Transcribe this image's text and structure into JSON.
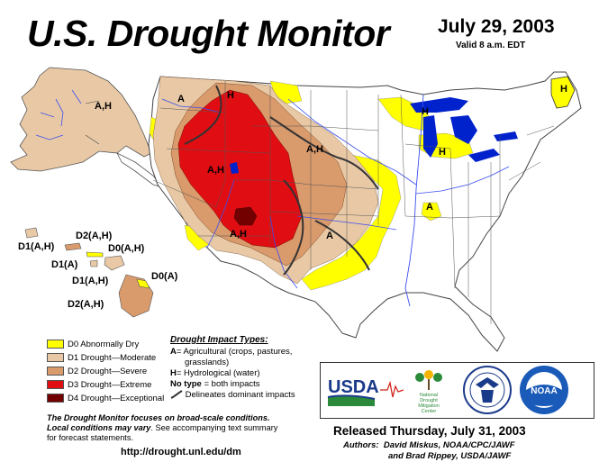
{
  "header": {
    "title": "U.S. Drought Monitor",
    "date": "July 29, 2003",
    "valid": "Valid 8 a.m. EDT"
  },
  "colors": {
    "d0": "#ffff00",
    "d1": "#fcd37f",
    "d1_map": "#e9c9a5",
    "d2": "#ffaa00",
    "d2_map": "#d99a6c",
    "d3": "#e60000",
    "d3_map": "#e00e12",
    "d4": "#730000",
    "water": "#0022cc",
    "rivers": "#3b4ef0"
  },
  "legend": {
    "categories": [
      {
        "key": "d0",
        "label": "D0 Abnormally Dry",
        "color": "#ffff00"
      },
      {
        "key": "d1",
        "label": "D1 Drought—Moderate",
        "color": "#e9c9a5"
      },
      {
        "key": "d2",
        "label": "D2 Drought—Severe",
        "color": "#d99a6c"
      },
      {
        "key": "d3",
        "label": "D3 Drought—Extreme",
        "color": "#e00e12"
      },
      {
        "key": "d4",
        "label": "D4 Drought—Exceptional",
        "color": "#730000"
      }
    ]
  },
  "impacts": {
    "title": "Drought Impact Types:",
    "a_key": "A",
    "a_text": "= Agricultural (crops, pastures,",
    "a_text2": "grasslands)",
    "h_key": "H",
    "h_text": "= Hydrological (water)",
    "none_key": "No type",
    "none_text": " = both impacts",
    "delineates": "Delineates dominant impacts"
  },
  "note": {
    "line1": "The Drought Monitor focuses on broad-scale conditions.",
    "line2_bold": "Local conditions may vary",
    "line2_rest": ". See accompanying text summary",
    "line3": "for forecast statements."
  },
  "url": "http://drought.unl.edu/dm",
  "released": "Released Thursday, July 31, 2003",
  "authors": {
    "prefix": "Authors:",
    "line1": "David Miskus, NOAA/CPC/JAWF",
    "line2": "and Brad Rippey, USDA/JAWF"
  },
  "logos": {
    "usda": "USDA",
    "ndmc1": "National",
    "ndmc2": "Drought",
    "ndmc3": "Mitigation",
    "ndmc4": "Center",
    "noaa": "NOAA"
  },
  "map_labels": {
    "alaska": "A,H",
    "northwest_a": "A",
    "idaho_h": "H",
    "west_ah": "A,H",
    "plains_ah": "A,H",
    "southwest_ah": "A,H",
    "texas_a": "A",
    "midwest_a": "A",
    "michigan_h": "H",
    "wisconsin_h": "H",
    "maine_h": "H",
    "hi_kauai": "D1(A,H)",
    "hi_oahu": "D2(A,H)",
    "hi_molokai": "D0(A,H)",
    "hi_lanai": "D1(A)",
    "hi_maui": "D1(A,H)",
    "hi_big_d0": "D0(A)",
    "hi_big_d2": "D2(A,H)"
  }
}
